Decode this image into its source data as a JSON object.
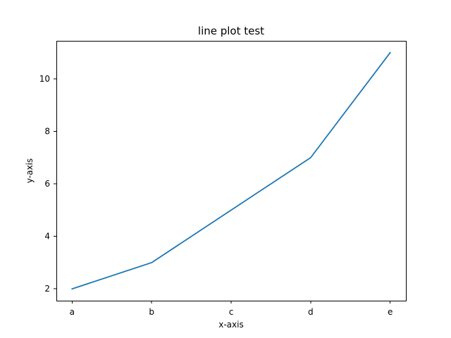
{
  "chart_data": {
    "type": "line",
    "title": "line plot test",
    "xlabel": "x-axis",
    "ylabel": "y-axis",
    "categories": [
      "a",
      "b",
      "c",
      "d",
      "e"
    ],
    "series": [
      {
        "values": [
          2,
          3,
          5,
          7,
          11
        ],
        "color": "#1f77b4"
      }
    ],
    "ylim": [
      1.55,
      11.45
    ],
    "yticks": [
      2,
      4,
      6,
      8,
      10
    ],
    "grid": false,
    "legend": "none"
  }
}
